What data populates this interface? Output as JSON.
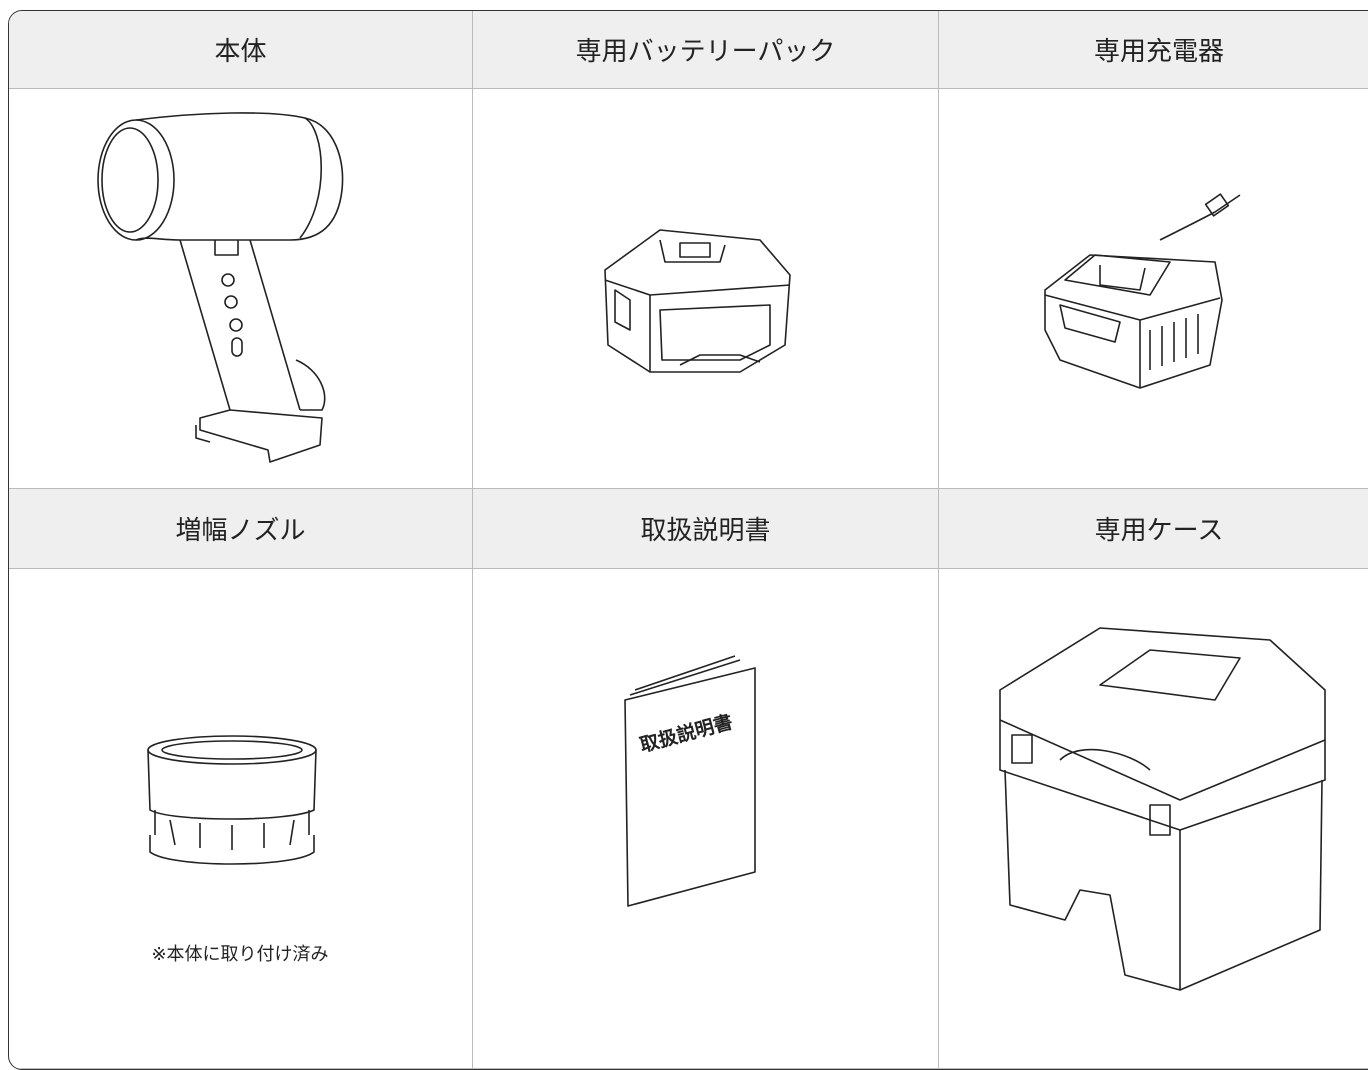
{
  "items": [
    {
      "label": "本体"
    },
    {
      "label": "専用バッテリーパック"
    },
    {
      "label": "専用充電器"
    },
    {
      "label": "増幅ノズル",
      "note": "※本体に取り付け済み"
    },
    {
      "label": "取扱説明書"
    },
    {
      "label": "専用ケース"
    }
  ]
}
